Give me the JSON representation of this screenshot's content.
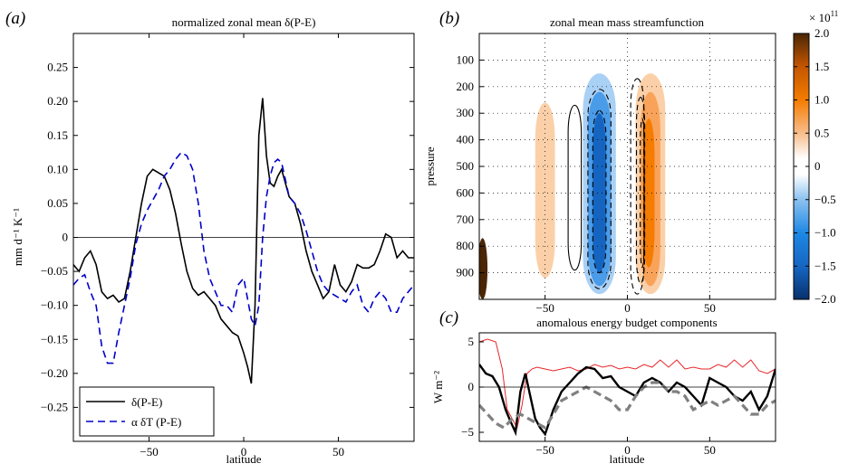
{
  "panel_labels": {
    "a": "(a)",
    "b": "(b)",
    "c": "(c)"
  },
  "colors": {
    "black": "#000000",
    "blue": "#0000cc",
    "red": "#e8262a",
    "gray": "#808080"
  },
  "chart_data": [
    {
      "type": "line",
      "title": "normalized zonal mean δ(P-E)",
      "xlabel": "latitude",
      "ylabel": "mm d⁻¹ K⁻¹",
      "xlim": [
        -90,
        90
      ],
      "ylim": [
        -0.3,
        0.3
      ],
      "xticks": [
        -50,
        0,
        50
      ],
      "yticks": [
        -0.25,
        -0.2,
        -0.15,
        -0.1,
        -0.05,
        0,
        0.05,
        0.1,
        0.15,
        0.2,
        0.25
      ],
      "ytick_labels": [
        "−0.25",
        "−0.20",
        "−0.15",
        "−0.10",
        "−0.05",
        "0",
        "0.05",
        "0.10",
        "0.15",
        "0.20",
        "0.25"
      ],
      "xtick_labels": [
        "−50",
        "0",
        "50"
      ],
      "legend_position": "bottom-left",
      "series": [
        {
          "name": "δ(P-E)",
          "style": "solid",
          "color": "#000000",
          "x": [
            -90,
            -87,
            -84,
            -81,
            -78,
            -75,
            -72,
            -69,
            -66,
            -63,
            -60,
            -57,
            -54,
            -51,
            -48,
            -45,
            -42,
            -39,
            -36,
            -33,
            -30,
            -27,
            -24,
            -21,
            -18,
            -15,
            -12,
            -9,
            -6,
            -3,
            0,
            2,
            4,
            6,
            8,
            10,
            12,
            14,
            16,
            18,
            20,
            22,
            24,
            27,
            30,
            33,
            36,
            39,
            42,
            45,
            48,
            51,
            54,
            57,
            60,
            63,
            66,
            69,
            72,
            75,
            78,
            81,
            84,
            87,
            90
          ],
          "y": [
            -0.04,
            -0.05,
            -0.03,
            -0.02,
            -0.04,
            -0.08,
            -0.09,
            -0.085,
            -0.095,
            -0.09,
            -0.05,
            0.0,
            0.05,
            0.09,
            0.1,
            0.095,
            0.09,
            0.07,
            0.035,
            -0.01,
            -0.05,
            -0.075,
            -0.085,
            -0.08,
            -0.09,
            -0.1,
            -0.12,
            -0.13,
            -0.14,
            -0.145,
            -0.17,
            -0.19,
            -0.215,
            -0.1,
            0.15,
            0.205,
            0.12,
            0.08,
            0.075,
            0.09,
            0.1,
            0.08,
            0.06,
            0.05,
            0.02,
            -0.02,
            -0.05,
            -0.07,
            -0.09,
            -0.08,
            -0.04,
            -0.07,
            -0.08,
            -0.065,
            -0.04,
            -0.045,
            -0.045,
            -0.04,
            -0.02,
            0.005,
            0.0,
            -0.03,
            -0.02,
            -0.03,
            -0.03
          ]
        },
        {
          "name": "α δT (P-E)",
          "style": "dashed",
          "color": "#0000cc",
          "x": [
            -90,
            -87,
            -84,
            -81,
            -78,
            -75,
            -72,
            -69,
            -66,
            -63,
            -60,
            -57,
            -54,
            -51,
            -48,
            -45,
            -42,
            -39,
            -36,
            -33,
            -30,
            -27,
            -24,
            -21,
            -18,
            -15,
            -12,
            -9,
            -6,
            -3,
            0,
            2,
            4,
            6,
            8,
            10,
            12,
            14,
            16,
            18,
            20,
            22,
            24,
            27,
            30,
            33,
            36,
            39,
            42,
            45,
            48,
            51,
            54,
            57,
            60,
            63,
            66,
            69,
            72,
            75,
            78,
            81,
            84,
            87,
            90
          ],
          "y": [
            -0.07,
            -0.06,
            -0.055,
            -0.08,
            -0.1,
            -0.16,
            -0.185,
            -0.185,
            -0.14,
            -0.1,
            -0.06,
            -0.01,
            0.02,
            0.04,
            0.055,
            0.07,
            0.09,
            0.1,
            0.115,
            0.125,
            0.12,
            0.1,
            0.05,
            -0.02,
            -0.06,
            -0.08,
            -0.1,
            -0.1,
            -0.11,
            -0.07,
            -0.06,
            -0.09,
            -0.12,
            -0.13,
            -0.1,
            0.0,
            0.06,
            0.09,
            0.11,
            0.115,
            0.11,
            0.085,
            0.06,
            0.05,
            0.035,
            0.01,
            -0.02,
            -0.05,
            -0.07,
            -0.08,
            -0.085,
            -0.09,
            -0.095,
            -0.08,
            -0.07,
            -0.1,
            -0.11,
            -0.09,
            -0.08,
            -0.09,
            -0.11,
            -0.11,
            -0.09,
            -0.08,
            -0.07
          ]
        }
      ]
    },
    {
      "type": "heatmap",
      "title": "zonal mean mass streamfunction",
      "xlabel": "",
      "ylabel": "pressure",
      "xlim": [
        -90,
        90
      ],
      "ylim": [
        1000,
        0
      ],
      "xticks": [
        -50,
        0,
        50
      ],
      "xtick_labels": [
        "−50",
        "0",
        "50"
      ],
      "yticks": [
        100,
        200,
        300,
        400,
        500,
        600,
        700,
        800,
        900
      ],
      "colorbar": {
        "exponent_label": "× 10",
        "exponent": "11",
        "ticks": [
          2.0,
          1.5,
          1.0,
          0.5,
          0,
          -0.5,
          -1.0,
          -1.5,
          -2.0
        ],
        "tick_labels": [
          "2.0",
          "1.5",
          "1.0",
          "0.5",
          "0",
          "−0.5",
          "−1.0",
          "−1.5",
          "−2.0"
        ],
        "range": [
          -2.0,
          2.0
        ]
      },
      "filled_regions": [
        {
          "name": "south-midlat-positive",
          "lat_center": -50,
          "lat_halfwidth": 6,
          "p_top": 260,
          "p_bottom": 920,
          "value": 0.4
        },
        {
          "name": "hadley-south-neg-outer",
          "lat_center": -17,
          "lat_halfwidth": 10,
          "p_top": 150,
          "p_bottom": 980,
          "value": -0.4
        },
        {
          "name": "hadley-south-neg-mid",
          "lat_center": -17,
          "lat_halfwidth": 7,
          "p_top": 220,
          "p_bottom": 950,
          "value": -0.8
        },
        {
          "name": "hadley-south-neg-core",
          "lat_center": -17,
          "lat_halfwidth": 4,
          "p_top": 300,
          "p_bottom": 900,
          "value": -1.2
        },
        {
          "name": "hadley-north-pos-outer",
          "lat_center": 14,
          "lat_halfwidth": 9,
          "p_top": 150,
          "p_bottom": 980,
          "value": 0.4
        },
        {
          "name": "hadley-north-pos-mid",
          "lat_center": 14,
          "lat_halfwidth": 6,
          "p_top": 220,
          "p_bottom": 950,
          "value": 0.8
        },
        {
          "name": "hadley-north-pos-core",
          "lat_center": 13,
          "lat_halfwidth": 3.5,
          "p_top": 320,
          "p_bottom": 880,
          "value": 1.2
        },
        {
          "name": "antarctic-terrain",
          "lat_center": -88,
          "lat_halfwidth": 3,
          "p_top": 770,
          "p_bottom": 1000,
          "value": 1.8
        }
      ],
      "contours": [
        {
          "style": "solid",
          "lat_center": -32,
          "lat_halfwidth": 4,
          "p_top": 270,
          "p_bottom": 890
        },
        {
          "style": "dashed",
          "lat_center": -17,
          "lat_halfwidth": 7,
          "p_top": 210,
          "p_bottom": 960
        },
        {
          "style": "dashed",
          "lat_center": -17,
          "lat_halfwidth": 4,
          "p_top": 290,
          "p_bottom": 900
        },
        {
          "style": "dashed",
          "lat_center": 6,
          "lat_halfwidth": 4,
          "p_top": 170,
          "p_bottom": 980
        },
        {
          "style": "dashed",
          "lat_center": 8,
          "lat_halfwidth": 2.5,
          "p_top": 240,
          "p_bottom": 940
        },
        {
          "style": "dashed",
          "lat_center": 9,
          "lat_halfwidth": 1.2,
          "p_top": 320,
          "p_bottom": 880
        }
      ]
    },
    {
      "type": "line",
      "title": "anomalous energy budget components",
      "xlabel": "latitude",
      "ylabel": "W m⁻²",
      "xlim": [
        -90,
        90
      ],
      "ylim": [
        -6,
        6
      ],
      "xticks": [
        -50,
        0,
        50
      ],
      "xtick_labels": [
        "−50",
        "0",
        "50"
      ],
      "yticks": [
        -5,
        0,
        5
      ],
      "ytick_labels": [
        "−5",
        "0",
        "5"
      ],
      "series": [
        {
          "style": "solid-thin",
          "color": "#e8262a",
          "x": [
            -90,
            -85,
            -80,
            -76,
            -73,
            -70,
            -67,
            -64,
            -61,
            -58,
            -55,
            -50,
            -45,
            -40,
            -35,
            -30,
            -25,
            -20,
            -15,
            -10,
            -5,
            0,
            5,
            10,
            15,
            20,
            25,
            30,
            35,
            40,
            45,
            50,
            55,
            60,
            65,
            70,
            75,
            80,
            85,
            90
          ],
          "y": [
            5,
            5.3,
            5,
            2,
            -2.5,
            -3.5,
            -4.5,
            -2,
            1.5,
            2,
            2.2,
            2,
            1.8,
            2,
            2.2,
            1.8,
            2,
            2.5,
            2.2,
            2.4,
            2,
            2.2,
            2,
            2.5,
            2.2,
            3,
            2.2,
            3,
            2,
            2.2,
            2,
            2,
            2.5,
            2.2,
            3,
            2.2,
            3,
            1.8,
            1.5,
            2
          ]
        },
        {
          "style": "solid-thick",
          "color": "#000000",
          "x": [
            -90,
            -86,
            -82,
            -78,
            -74,
            -71,
            -68,
            -65,
            -62,
            -59,
            -56,
            -53,
            -50,
            -45,
            -40,
            -35,
            -30,
            -25,
            -20,
            -15,
            -10,
            -5,
            0,
            5,
            10,
            15,
            20,
            25,
            30,
            35,
            40,
            45,
            50,
            55,
            60,
            65,
            70,
            75,
            80,
            85,
            90
          ],
          "y": [
            2.5,
            1.5,
            1.2,
            0,
            -2.5,
            -3.8,
            -5,
            -0.5,
            1.5,
            -1,
            -3.5,
            -4.5,
            -5.2,
            -2.5,
            -0.5,
            0.5,
            1.5,
            2.2,
            2,
            1,
            1.2,
            0,
            -0.5,
            -1,
            0.5,
            1,
            0.5,
            -0.5,
            0.5,
            0,
            -1,
            -2,
            1,
            0.5,
            0,
            -1,
            -1.5,
            -0.5,
            -2.5,
            -1,
            2
          ]
        },
        {
          "style": "dashed-thick",
          "color": "#808080",
          "x": [
            -90,
            -85,
            -80,
            -75,
            -70,
            -65,
            -60,
            -55,
            -50,
            -45,
            -40,
            -35,
            -30,
            -25,
            -20,
            -15,
            -10,
            -5,
            0,
            5,
            10,
            15,
            20,
            25,
            30,
            35,
            40,
            45,
            50,
            55,
            60,
            65,
            70,
            75,
            80,
            85,
            90
          ],
          "y": [
            -2,
            -3,
            -4,
            -4.5,
            -3.5,
            -3,
            -3.5,
            -4,
            -4.5,
            -3,
            -1.5,
            -1,
            -0.5,
            0,
            -0.5,
            -1,
            -1.5,
            -2.5,
            -2.5,
            -1,
            0,
            0.5,
            0.5,
            -0.5,
            -0.5,
            -1,
            -2.5,
            -2,
            -1.5,
            -2,
            -1.5,
            -1,
            -2,
            -3,
            -3,
            -2,
            -1.5
          ]
        }
      ]
    }
  ]
}
